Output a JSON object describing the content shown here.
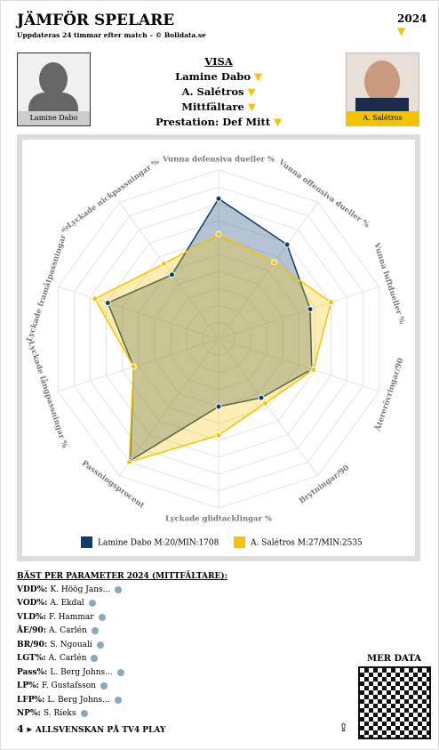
{
  "header": {
    "title": "JÄMFÖR SPELARE",
    "subtitle": "Uppdateras 24 timmar efter match – © Bolldata.se",
    "year": "2024"
  },
  "players": {
    "left": "Lamine Dabo",
    "right": "A. Salétros"
  },
  "menu": {
    "title": "VISA",
    "items": [
      "Lamine Dabo",
      "A. Salétros",
      "Mittfältare",
      "Prestation: Def Mitt"
    ]
  },
  "chart_data": {
    "type": "radar",
    "categories": [
      "Vunna defensiva dueller %",
      "Vunna offensiva dueller %",
      "Vunna luftdueller %",
      "Återerövringar/90",
      "Brytningar/90",
      "Lyckade glidtacklingar %",
      "Passningsprocent",
      "Lyckade långpassningar %",
      "Lyckade framåtpassningar %",
      "Lyckade nickpassningar %"
    ],
    "series": [
      {
        "name": "Lamine Dabo M:20/MIN:1708",
        "color": "#0b3d6e",
        "values": [
          83,
          69,
          57,
          58,
          43,
          40,
          89,
          53,
          69,
          47
        ]
      },
      {
        "name": "A. Salétros M:27/MIN:2535",
        "color": "#f5c400",
        "values": [
          62,
          56,
          70,
          59,
          47,
          57,
          90,
          53,
          77,
          55
        ]
      }
    ],
    "ylim": [
      0,
      100
    ]
  },
  "best": {
    "title": "BÄST PER PARAMETER 2024 (MITTFÄLTARE):",
    "rows": [
      [
        "VDD%:",
        "K. Höög Jans..."
      ],
      [
        "VOD%:",
        "A. Ekdal"
      ],
      [
        "VLD%:",
        "F. Hammar"
      ],
      [
        "ÅE/90:",
        "A. Carlén"
      ],
      [
        "BR/90:",
        "S. Ngouali"
      ],
      [
        "LGT%:",
        "A. Carlén"
      ],
      [
        "Pass%:",
        "L. Berg Johns..."
      ],
      [
        "LP%:",
        "F. Gustafsson"
      ],
      [
        "LFP%:",
        "L. Berg Johns..."
      ],
      [
        "NP%:",
        "S. Rieks"
      ]
    ]
  },
  "footer": {
    "more": "MER DATA",
    "tv": "ALLSVENSKAN PÅ TV4 PLAY"
  }
}
